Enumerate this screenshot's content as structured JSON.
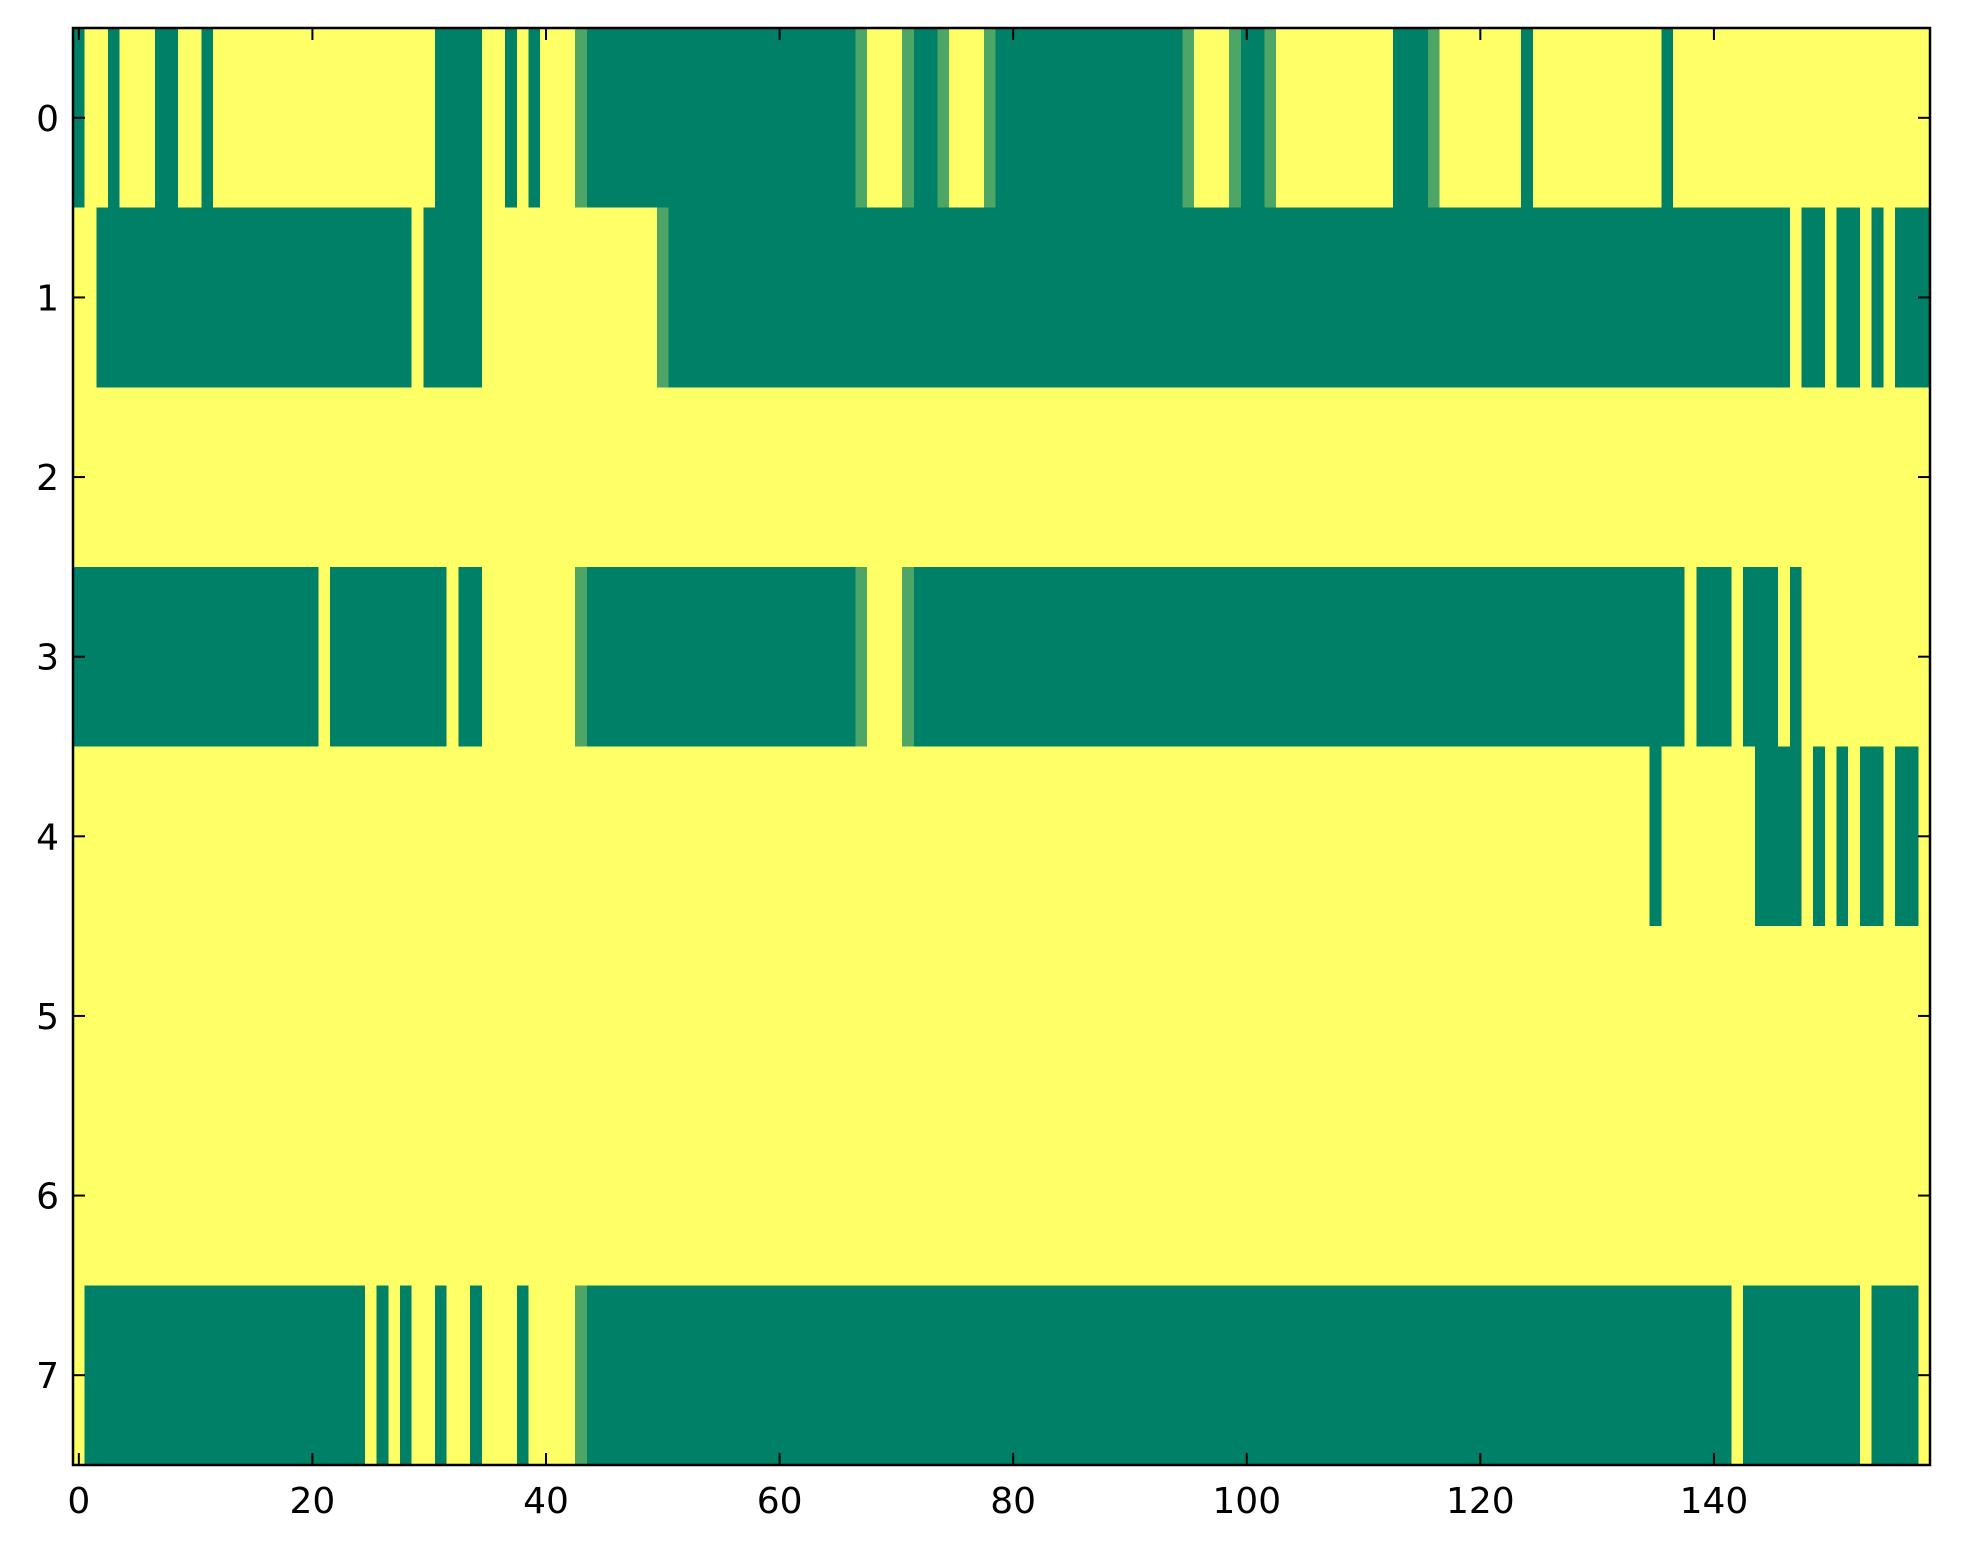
{
  "chart_data": {
    "type": "heatmap",
    "colors": [
      "#008066",
      "#ffff66"
    ],
    "xlim": [
      -0.5,
      158.5
    ],
    "ylim": [
      7.5,
      -0.5
    ],
    "xticks": [
      0,
      20,
      40,
      60,
      80,
      100,
      120,
      140
    ],
    "yticks": [
      0,
      1,
      2,
      3,
      4,
      5,
      6,
      7
    ],
    "values": [
      [
        0,
        1,
        1,
        0,
        1,
        1,
        1,
        0,
        0,
        1,
        1,
        0,
        1,
        1,
        1,
        1,
        1,
        1,
        1,
        1,
        1,
        1,
        1,
        1,
        1,
        1,
        1,
        1,
        1,
        1,
        1,
        0,
        0,
        0,
        0,
        1,
        1,
        0,
        1,
        0,
        1,
        1,
        1,
        0.3,
        0,
        0,
        0,
        0,
        0,
        0,
        0,
        0,
        0,
        0,
        0,
        0,
        0,
        0,
        0,
        0,
        0,
        0,
        0,
        0,
        0,
        0,
        0,
        0.3,
        1,
        1,
        1,
        0.3,
        0,
        0,
        0.3,
        1,
        1,
        1,
        0.3,
        0,
        0,
        0,
        0,
        0,
        0,
        0,
        0,
        0,
        0,
        0,
        0,
        0,
        0,
        0,
        0,
        0.3,
        1,
        1,
        1,
        0.3,
        0,
        0,
        0.3,
        1,
        1,
        1,
        1,
        1,
        1,
        1,
        1,
        1,
        1,
        0,
        0,
        0,
        0.3,
        1,
        1,
        1,
        1,
        1,
        1,
        1,
        0,
        1,
        1,
        1,
        1,
        1,
        1,
        1,
        1,
        1,
        1,
        1,
        0,
        1,
        1,
        1,
        1,
        1,
        1,
        1,
        1,
        1,
        1,
        1,
        1,
        1,
        1,
        1,
        1,
        1,
        1,
        1,
        1,
        1,
        1
      ],
      [
        1,
        1,
        0,
        0,
        0,
        0,
        0,
        0,
        0,
        0,
        0,
        0,
        0,
        0,
        0,
        0,
        0,
        0,
        0,
        0,
        0,
        0,
        0,
        0,
        0,
        0,
        0,
        0,
        0,
        1,
        0,
        0,
        0,
        0,
        0,
        1,
        1,
        1,
        1,
        1,
        1,
        1,
        1,
        1,
        1,
        1,
        1,
        1,
        1,
        1,
        0.3,
        0,
        0,
        0,
        0,
        0,
        0,
        0,
        0,
        0,
        0,
        0,
        0,
        0,
        0,
        0,
        0,
        0,
        0,
        0,
        0,
        0,
        0,
        0,
        0,
        0,
        0,
        0,
        0,
        0,
        0,
        0,
        0,
        0,
        0,
        0,
        0,
        0,
        0,
        0,
        0,
        0,
        0,
        0,
        0,
        0,
        0,
        0,
        0,
        0,
        0,
        0,
        0,
        0,
        0,
        0,
        0,
        0,
        0,
        0,
        0,
        0,
        0,
        0,
        0,
        0,
        0,
        0,
        0,
        0,
        0,
        0,
        0,
        0,
        0,
        0,
        0,
        0,
        0,
        0,
        0,
        0,
        0,
        0,
        0,
        0,
        0,
        0,
        0,
        0,
        0,
        0,
        0,
        0,
        0,
        0,
        0,
        1,
        0,
        0,
        1,
        0,
        0,
        1,
        0,
        1,
        0,
        0,
        0
      ],
      [
        1,
        1,
        1,
        1,
        1,
        1,
        1,
        1,
        1,
        1,
        1,
        1,
        1,
        1,
        1,
        1,
        1,
        1,
        1,
        1,
        1,
        1,
        1,
        1,
        1,
        1,
        1,
        1,
        1,
        1,
        1,
        1,
        1,
        1,
        1,
        1,
        1,
        1,
        1,
        1,
        1,
        1,
        1,
        1,
        1,
        1,
        1,
        1,
        1,
        1,
        1,
        1,
        1,
        1,
        1,
        1,
        1,
        1,
        1,
        1,
        1,
        1,
        1,
        1,
        1,
        1,
        1,
        1,
        1,
        1,
        1,
        1,
        1,
        1,
        1,
        1,
        1,
        1,
        1,
        1,
        1,
        1,
        1,
        1,
        1,
        1,
        1,
        1,
        1,
        1,
        1,
        1,
        1,
        1,
        1,
        1,
        1,
        1,
        1,
        1,
        1,
        1,
        1,
        1,
        1,
        1,
        1,
        1,
        1,
        1,
        1,
        1,
        1,
        1,
        1,
        1,
        1,
        1,
        1,
        1,
        1,
        1,
        1,
        1,
        1,
        1,
        1,
        1,
        1,
        1,
        1,
        1,
        1,
        1,
        1,
        1,
        1,
        1,
        1,
        1,
        1,
        1,
        1,
        1,
        1,
        1,
        1,
        1,
        1,
        1,
        1,
        1,
        1,
        1,
        1,
        1,
        1,
        1,
        1
      ],
      [
        0,
        0,
        0,
        0,
        0,
        0,
        0,
        0,
        0,
        0,
        0,
        0,
        0,
        0,
        0,
        0,
        0,
        0,
        0,
        0,
        0,
        1,
        0,
        0,
        0,
        0,
        0,
        0,
        0,
        0,
        0,
        0,
        1,
        0,
        0,
        1,
        1,
        1,
        1,
        1,
        1,
        1,
        1,
        0.3,
        0,
        0,
        0,
        0,
        0,
        0,
        0,
        0,
        0,
        0,
        0,
        0,
        0,
        0,
        0,
        0,
        0,
        0,
        0,
        0,
        0,
        0,
        0,
        0.3,
        1,
        1,
        1,
        0.3,
        0,
        0,
        0,
        0,
        0,
        0,
        0,
        0,
        0,
        0,
        0,
        0,
        0,
        0,
        0,
        0,
        0,
        0,
        0,
        0,
        0,
        0,
        0,
        0,
        0,
        0,
        0,
        0,
        0,
        0,
        0,
        0,
        0,
        0,
        0,
        0,
        0,
        0,
        0,
        0,
        0,
        0,
        0,
        0,
        0,
        0,
        0,
        0,
        0,
        0,
        0,
        0,
        0,
        0,
        0,
        0,
        0,
        0,
        0,
        0,
        0,
        0,
        0,
        0,
        0,
        0,
        1,
        0,
        0,
        0,
        1,
        0,
        0,
        0,
        1,
        0,
        1,
        1,
        1,
        1,
        1,
        1,
        1,
        1,
        1,
        1,
        1
      ],
      [
        1,
        1,
        1,
        1,
        1,
        1,
        1,
        1,
        1,
        1,
        1,
        1,
        1,
        1,
        1,
        1,
        1,
        1,
        1,
        1,
        1,
        1,
        1,
        1,
        1,
        1,
        1,
        1,
        1,
        1,
        1,
        1,
        1,
        1,
        1,
        1,
        1,
        1,
        1,
        1,
        1,
        1,
        1,
        1,
        1,
        1,
        1,
        1,
        1,
        1,
        1,
        1,
        1,
        1,
        1,
        1,
        1,
        1,
        1,
        1,
        1,
        1,
        1,
        1,
        1,
        1,
        1,
        1,
        1,
        1,
        1,
        1,
        1,
        1,
        1,
        1,
        1,
        1,
        1,
        1,
        1,
        1,
        1,
        1,
        1,
        1,
        1,
        1,
        1,
        1,
        1,
        1,
        1,
        1,
        1,
        1,
        1,
        1,
        1,
        1,
        1,
        1,
        1,
        1,
        1,
        1,
        1,
        1,
        1,
        1,
        1,
        1,
        1,
        1,
        1,
        1,
        1,
        1,
        1,
        1,
        1,
        1,
        1,
        1,
        1,
        1,
        1,
        1,
        1,
        1,
        1,
        1,
        1,
        1,
        1,
        0,
        1,
        1,
        1,
        1,
        1,
        1,
        1,
        1,
        0,
        0,
        0,
        0,
        1,
        0,
        1,
        0,
        1,
        0,
        0,
        1,
        0,
        0,
        1
      ],
      [
        1,
        1,
        1,
        1,
        1,
        1,
        1,
        1,
        1,
        1,
        1,
        1,
        1,
        1,
        1,
        1,
        1,
        1,
        1,
        1,
        1,
        1,
        1,
        1,
        1,
        1,
        1,
        1,
        1,
        1,
        1,
        1,
        1,
        1,
        1,
        1,
        1,
        1,
        1,
        1,
        1,
        1,
        1,
        1,
        1,
        1,
        1,
        1,
        1,
        1,
        1,
        1,
        1,
        1,
        1,
        1,
        1,
        1,
        1,
        1,
        1,
        1,
        1,
        1,
        1,
        1,
        1,
        1,
        1,
        1,
        1,
        1,
        1,
        1,
        1,
        1,
        1,
        1,
        1,
        1,
        1,
        1,
        1,
        1,
        1,
        1,
        1,
        1,
        1,
        1,
        1,
        1,
        1,
        1,
        1,
        1,
        1,
        1,
        1,
        1,
        1,
        1,
        1,
        1,
        1,
        1,
        1,
        1,
        1,
        1,
        1,
        1,
        1,
        1,
        1,
        1,
        1,
        1,
        1,
        1,
        1,
        1,
        1,
        1,
        1,
        1,
        1,
        1,
        1,
        1,
        1,
        1,
        1,
        1,
        1,
        1,
        1,
        1,
        1,
        1,
        1,
        1,
        1,
        1,
        1,
        1,
        1,
        1,
        1,
        1,
        1,
        1,
        1,
        1,
        1,
        1,
        1,
        1,
        1
      ],
      [
        1,
        1,
        1,
        1,
        1,
        1,
        1,
        1,
        1,
        1,
        1,
        1,
        1,
        1,
        1,
        1,
        1,
        1,
        1,
        1,
        1,
        1,
        1,
        1,
        1,
        1,
        1,
        1,
        1,
        1,
        1,
        1,
        1,
        1,
        1,
        1,
        1,
        1,
        1,
        1,
        1,
        1,
        1,
        1,
        1,
        1,
        1,
        1,
        1,
        1,
        1,
        1,
        1,
        1,
        1,
        1,
        1,
        1,
        1,
        1,
        1,
        1,
        1,
        1,
        1,
        1,
        1,
        1,
        1,
        1,
        1,
        1,
        1,
        1,
        1,
        1,
        1,
        1,
        1,
        1,
        1,
        1,
        1,
        1,
        1,
        1,
        1,
        1,
        1,
        1,
        1,
        1,
        1,
        1,
        1,
        1,
        1,
        1,
        1,
        1,
        1,
        1,
        1,
        1,
        1,
        1,
        1,
        1,
        1,
        1,
        1,
        1,
        1,
        1,
        1,
        1,
        1,
        1,
        1,
        1,
        1,
        1,
        1,
        1,
        1,
        1,
        1,
        1,
        1,
        1,
        1,
        1,
        1,
        1,
        1,
        1,
        1,
        1,
        1,
        1,
        1,
        1,
        1,
        1,
        1,
        1,
        1,
        1,
        1,
        1,
        1,
        1,
        1,
        1,
        1,
        1,
        1,
        1,
        1
      ],
      [
        1,
        0,
        0,
        0,
        0,
        0,
        0,
        0,
        0,
        0,
        0,
        0,
        0,
        0,
        0,
        0,
        0,
        0,
        0,
        0,
        0,
        0,
        0,
        0,
        0,
        1,
        0,
        1,
        0,
        1,
        1,
        0,
        1,
        1,
        0,
        1,
        1,
        1,
        0,
        1,
        1,
        1,
        1,
        0.3,
        0,
        0,
        0,
        0,
        0,
        0,
        0,
        0,
        0,
        0,
        0,
        0,
        0,
        0,
        0,
        0,
        0,
        0,
        0,
        0,
        0,
        0,
        0,
        0,
        0,
        0,
        0,
        0,
        0,
        0,
        0,
        0,
        0,
        0,
        0,
        0,
        0,
        0,
        0,
        0,
        0,
        0,
        0,
        0,
        0,
        0,
        0,
        0,
        0,
        0,
        0,
        0,
        0,
        0,
        0,
        0,
        0,
        0,
        0,
        0,
        0,
        0,
        0,
        0,
        0,
        0,
        0,
        0,
        0,
        0,
        0,
        0,
        0,
        0,
        0,
        0,
        0,
        0,
        0,
        0,
        0,
        0,
        0,
        0,
        0,
        0,
        0,
        0,
        0,
        0,
        0,
        0,
        0,
        0,
        0,
        0,
        0,
        0,
        1,
        0,
        0,
        0,
        0,
        0,
        0,
        0,
        0,
        0,
        0,
        1,
        0,
        0,
        0,
        0,
        1
      ]
    ]
  }
}
